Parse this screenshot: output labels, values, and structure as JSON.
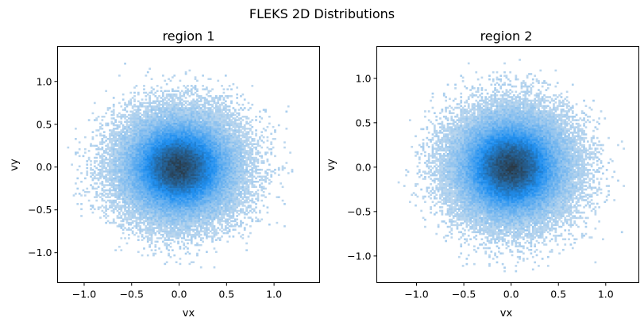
{
  "figure": {
    "suptitle": "FLEKS 2D Distributions"
  },
  "chart_data": [
    {
      "type": "heatmap",
      "title": "region 1",
      "xlabel": "vx",
      "ylabel": "vy",
      "xlim": [
        -1.28,
        1.48
      ],
      "ylim": [
        -1.35,
        1.41
      ],
      "xticks": [
        -1.0,
        -0.5,
        0.0,
        0.5,
        1.0
      ],
      "yticks": [
        -1.0,
        -0.5,
        0.0,
        0.5,
        1.0
      ],
      "xticklabels": [
        "−1.0",
        "−0.5",
        "0.0",
        "0.5",
        "1.0"
      ],
      "yticklabels": [
        "−1.0",
        "−0.5",
        "0.0",
        "0.5",
        "1.0"
      ],
      "grid": false,
      "distribution": {
        "kind": "2D histogram of samples",
        "center": [
          0.0,
          0.0
        ],
        "std": [
          0.3,
          0.3
        ],
        "bin_width": 0.02,
        "extent_x": [
          -1.2,
          1.4
        ],
        "extent_y": [
          -1.3,
          1.3
        ],
        "colormap": [
          "#bcd7ee",
          "#1f8ff0",
          "#2a3640"
        ]
      }
    },
    {
      "type": "heatmap",
      "title": "region 2",
      "xlabel": "vx",
      "ylabel": "vy",
      "xlim": [
        -1.42,
        1.35
      ],
      "ylim": [
        -1.3,
        1.36
      ],
      "xticks": [
        -1.0,
        -0.5,
        0.0,
        0.5,
        1.0
      ],
      "yticks": [
        -1.0,
        -0.5,
        0.0,
        0.5,
        1.0
      ],
      "xticklabels": [
        "−1.0",
        "−0.5",
        "0.0",
        "0.5",
        "1.0"
      ],
      "yticklabels": [
        "−1.0",
        "−0.5",
        "0.0",
        "0.5",
        "1.0"
      ],
      "grid": false,
      "distribution": {
        "kind": "2D histogram of samples",
        "center": [
          0.0,
          0.0
        ],
        "std": [
          0.3,
          0.3
        ],
        "bin_width": 0.02,
        "extent_x": [
          -1.3,
          1.3
        ],
        "extent_y": [
          -1.2,
          1.25
        ],
        "colormap": [
          "#bcd7ee",
          "#1f8ff0",
          "#2a3640"
        ]
      }
    }
  ]
}
